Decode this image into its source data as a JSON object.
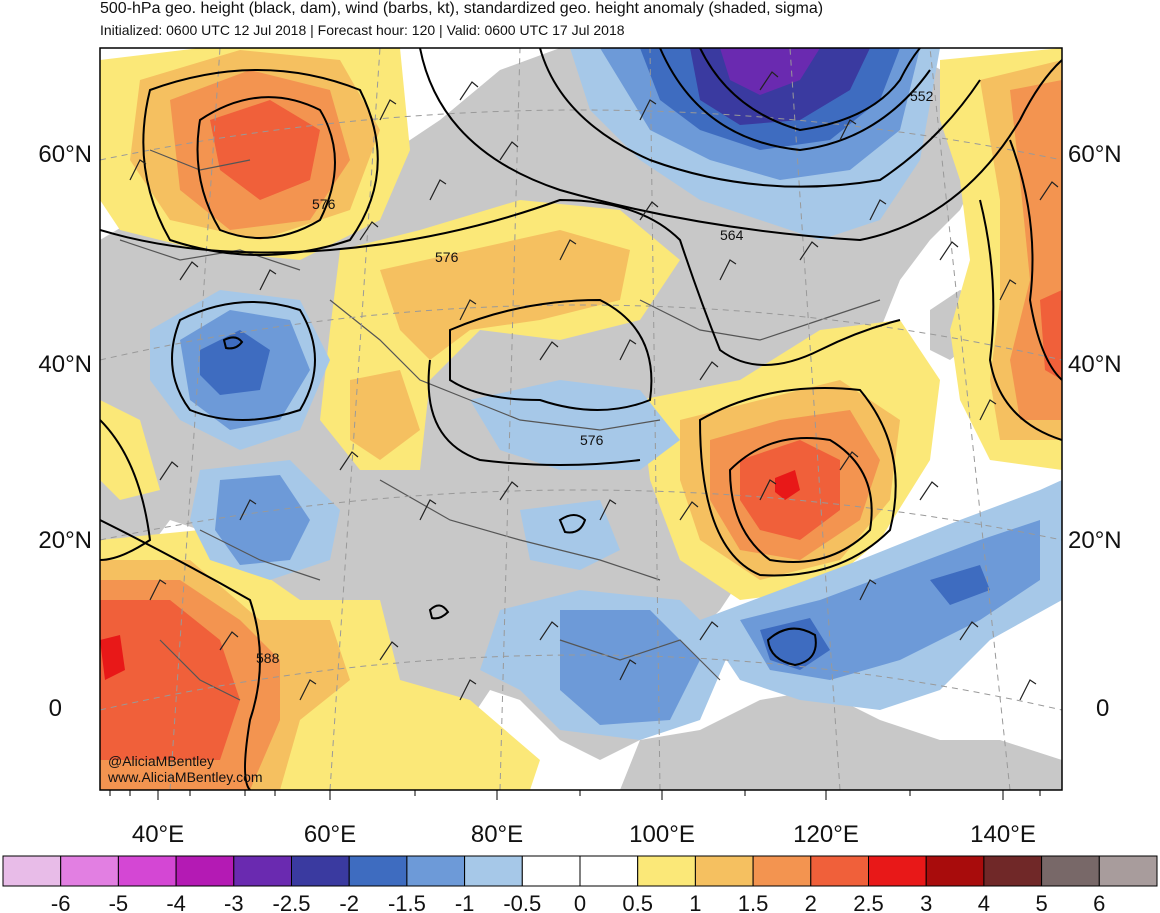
{
  "header": {
    "title": "500-hPa geo. height (black, dam), wind (barbs, kt), standardized geo. height anomaly (shaded, sigma)",
    "subtitle": "Initialized: 0600 UTC 12 Jul 2018 | Forecast hour: 120 | Valid: 0600 UTC 17 Jul 2018"
  },
  "map": {
    "lat_labels": [
      {
        "value": 60,
        "text": "60°N"
      },
      {
        "value": 40,
        "text": "40°N"
      },
      {
        "value": 20,
        "text": "20°N"
      },
      {
        "value": 0,
        "text": "0"
      }
    ],
    "lon_labels": [
      {
        "value": 40,
        "text": "40°E"
      },
      {
        "value": 60,
        "text": "60°E"
      },
      {
        "value": 80,
        "text": "80°E"
      },
      {
        "value": 100,
        "text": "100°E"
      },
      {
        "value": 120,
        "text": "120°E"
      },
      {
        "value": 140,
        "text": "140°E"
      }
    ],
    "contour_labels": [
      "576",
      "576",
      "564",
      "552",
      "576",
      "588"
    ],
    "credit_line1": "@AliciaMBentley",
    "credit_line2": "www.AliciaMBentley.com"
  },
  "colorbar": {
    "colors": [
      "#e8bce8",
      "#e27fe2",
      "#d447d4",
      "#b41ab4",
      "#6a2ab0",
      "#3a3aa0",
      "#3e6cc0",
      "#6d9ad8",
      "#a6c8e8",
      "#ffffff",
      "#ffffff",
      "#fbe878",
      "#f5c060",
      "#f39450",
      "#f0603a",
      "#e81818",
      "#a80c0c",
      "#702828",
      "#786868",
      "#a89c9c"
    ],
    "labels": [
      "-6",
      "-5",
      "-4",
      "-3",
      "-2.5",
      "-2",
      "-1.5",
      "-1",
      "-0.5",
      "0",
      "0.5",
      "1",
      "1.5",
      "2",
      "2.5",
      "3",
      "4",
      "5",
      "6"
    ]
  },
  "palette": {
    "land": "#c8c8c8",
    "border": "#555555",
    "contour": "#000000"
  }
}
